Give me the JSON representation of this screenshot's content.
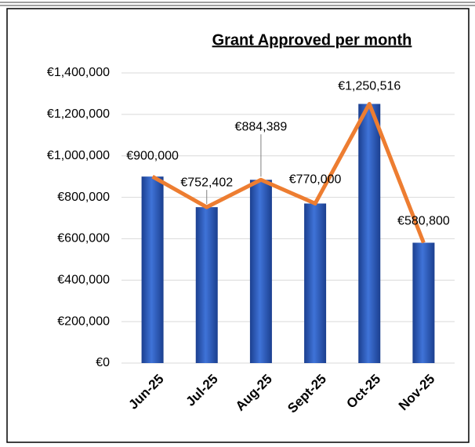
{
  "chart_data": {
    "type": "bar",
    "title": "Grant Approved per month",
    "categories": [
      "Jun-25",
      "Jul-25",
      "Aug-25",
      "Sept-25",
      "Oct-25",
      "Nov-25"
    ],
    "values": [
      900000,
      752402,
      884389,
      770000,
      1250516,
      580800
    ],
    "value_labels": [
      "€900,000",
      "€752,402",
      "€884,389",
      "€770,000",
      "€1,250,516",
      "€580,800"
    ],
    "color": "#2f5fc4",
    "line_color": "#ed7d31",
    "ylim": [
      0,
      1400000
    ],
    "yticks": [
      {
        "value": 0,
        "label": "€0"
      },
      {
        "value": 200000,
        "label": "€200,000"
      },
      {
        "value": 400000,
        "label": "€400,000"
      },
      {
        "value": 600000,
        "label": "€600,000"
      },
      {
        "value": 800000,
        "label": "€800,000"
      },
      {
        "value": 1000000,
        "label": "€1,000,000"
      },
      {
        "value": 1200000,
        "label": "€1,200,000"
      },
      {
        "value": 1400000,
        "label": "€1,400,000"
      }
    ],
    "grid": true
  }
}
